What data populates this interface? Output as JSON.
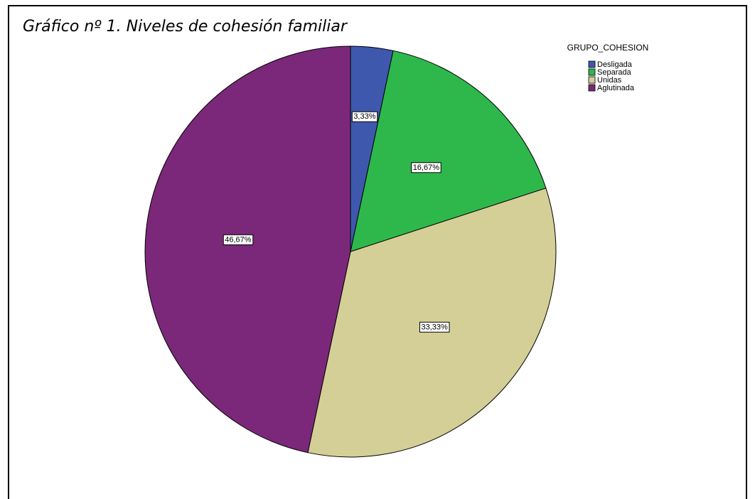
{
  "chart_data": {
    "type": "pie",
    "title": "Gráfico nº 1. Niveles de cohesión familiar",
    "legend_title": "GRUPO_COHESION",
    "categories": [
      "Desligada",
      "Separada",
      "Unidas",
      "Aglutinada"
    ],
    "values": [
      3.33,
      16.67,
      33.33,
      46.67
    ],
    "value_labels": [
      "3,33%",
      "16,67%",
      "33,33%",
      "46,67%"
    ],
    "colors": [
      "#3e58ad",
      "#2eb84b",
      "#d4cf97",
      "#7b287a"
    ],
    "legend": "top-right"
  }
}
